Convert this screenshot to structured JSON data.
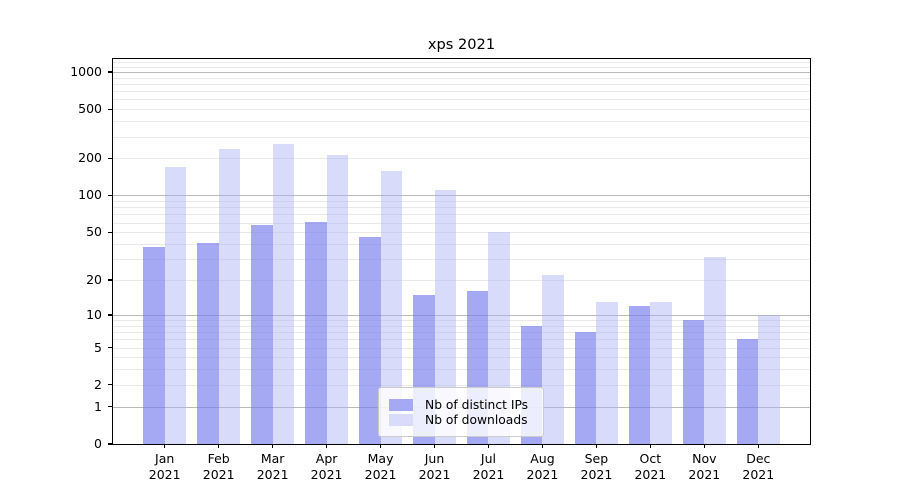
{
  "chart_data": {
    "type": "bar",
    "title": "xps 2021",
    "categories": [
      "Jan 2021",
      "Feb 2021",
      "Mar 2021",
      "Apr 2021",
      "May 2021",
      "Jun 2021",
      "Jul 2021",
      "Aug 2021",
      "Sep 2021",
      "Oct 2021",
      "Nov 2021",
      "Dec 2021"
    ],
    "series": [
      {
        "name": "Nb of distinct IPs",
        "values": [
          38,
          41,
          57,
          61,
          46,
          15,
          16,
          8,
          7,
          12,
          9,
          6
        ],
        "bar_color": "#777bed",
        "bar_opacity": 0.66,
        "legend_color": "#a5a8f3"
      },
      {
        "name": "Nb of downloads",
        "values": [
          170,
          240,
          260,
          215,
          158,
          110,
          50,
          22,
          13,
          13,
          31,
          10
        ],
        "bar_color": "#abaff4",
        "bar_opacity": 0.45,
        "legend_color": "#d9dbfa"
      }
    ],
    "yscale": "log1p",
    "y_ticks": [
      0,
      1,
      2,
      5,
      10,
      20,
      50,
      100,
      200,
      500,
      1000
    ],
    "ylim": [
      0,
      1260
    ],
    "xlabel": "",
    "ylabel": "",
    "grid": {
      "axis": "y",
      "major_color": "#bababa",
      "minor_color": "#e9e9e9"
    },
    "legend_position": "lower center",
    "axis_color": "#000000"
  }
}
